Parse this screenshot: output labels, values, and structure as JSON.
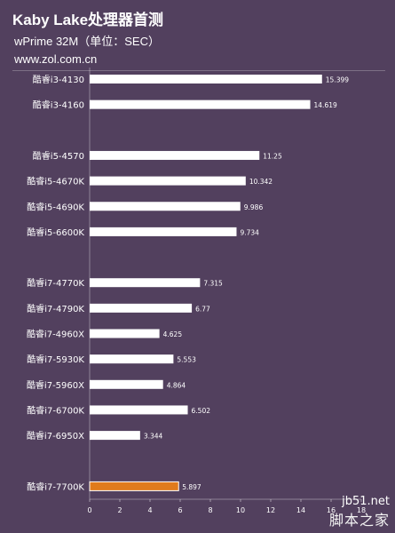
{
  "header": {
    "title": "Kaby Lake处理器首测",
    "subtitle": "wPrime 32M（单位：SEC）",
    "site": "www.zol.com.cn"
  },
  "watermark": {
    "line1": "jb51.net",
    "line2": "脚本之家"
  },
  "colors": {
    "background": "#52405e",
    "bar": "#ffffff",
    "highlight_bar": "#e07b1c",
    "text": "#ffffff"
  },
  "chart_data": {
    "type": "bar",
    "orientation": "horizontal",
    "categories": [
      "酷睿i3-4130",
      "酷睿i3-4160",
      "酷睿i5-4570",
      "酷睿i5-4670K",
      "酷睿i5-4690K",
      "酷睿i5-6600K",
      "酷睿i7-4770K",
      "酷睿i7-4790K",
      "酷睿i7-4960X",
      "酷睿i7-5930K",
      "酷睿i7-5960X",
      "酷睿i7-6700K",
      "酷睿i7-6950X",
      "酷睿i7-7700K"
    ],
    "values": [
      15.399,
      14.619,
      11.25,
      10.342,
      9.986,
      9.734,
      7.315,
      6.77,
      4.625,
      5.553,
      4.864,
      6.502,
      3.344,
      5.897
    ],
    "value_labels": [
      "15.399",
      "14.619",
      "11.25",
      "10.342",
      "9.986",
      "9.734",
      "7.315",
      "6.77",
      "4.625",
      "5.553",
      "4.864",
      "6.502",
      "3.344",
      "5.897"
    ],
    "highlight": "酷睿i7-7700K",
    "xlim": [
      0,
      18
    ],
    "xticks": [
      0,
      2,
      4,
      6,
      8,
      10,
      12,
      14,
      16,
      18
    ],
    "groups": [
      2,
      4,
      7,
      1
    ],
    "title": "",
    "xlabel": "",
    "ylabel": ""
  }
}
